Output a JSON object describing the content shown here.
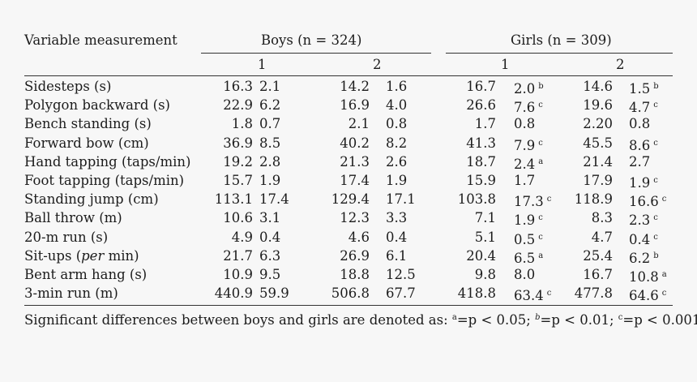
{
  "header": {
    "variable": "Variable measurement",
    "boys": "Boys (n = 324)",
    "girls": "Girls (n = 309)",
    "sub1": "1",
    "sub2": "2"
  },
  "rows": [
    {
      "label": "Sidesteps (s)",
      "b1m": "16.3",
      "b1s": "2.1",
      "b2m": "14.2",
      "b2s": "1.6",
      "g1m": "16.7",
      "g1s": "2.0",
      "g1k": "b",
      "g2m": "14.6",
      "g2s": "1.5",
      "g2k": "b"
    },
    {
      "label": "Polygon backward (s)",
      "b1m": "22.9",
      "b1s": "6.2",
      "b2m": "16.9",
      "b2s": "4.0",
      "g1m": "26.6",
      "g1s": "7.6",
      "g1k": "c",
      "g2m": "19.6",
      "g2s": "4.7",
      "g2k": "c"
    },
    {
      "label": "Bench standing (s)",
      "b1m": "1.8",
      "b1s": "0.7",
      "b2m": "2.1",
      "b2s": "0.8",
      "g1m": "1.7",
      "g1s": "0.8",
      "g1k": "",
      "g2m": "2.20",
      "g2s": "0.8",
      "g2k": ""
    },
    {
      "label": "Forward bow (cm)",
      "b1m": "36.9",
      "b1s": "8.5",
      "b2m": "40.2",
      "b2s": "8.2",
      "g1m": "41.3",
      "g1s": "7.9",
      "g1k": "c",
      "g2m": "45.5",
      "g2s": "8.6",
      "g2k": "c"
    },
    {
      "label": "Hand tapping (taps/min)",
      "b1m": "19.2",
      "b1s": "2.8",
      "b2m": "21.3",
      "b2s": "2.6",
      "g1m": "18.7",
      "g1s": "2.4",
      "g1k": "a",
      "g2m": "21.4",
      "g2s": "2.7",
      "g2k": ""
    },
    {
      "label": "Foot tapping (taps/min)",
      "b1m": "15.7",
      "b1s": "1.9",
      "b2m": "17.4",
      "b2s": "1.9",
      "g1m": "15.9",
      "g1s": "1.7",
      "g1k": "",
      "g2m": "17.9",
      "g2s": "1.9",
      "g2k": "c"
    },
    {
      "label": "Standing jump (cm)",
      "b1m": "113.1",
      "b1s": "17.4",
      "b2m": "129.4",
      "b2s": "17.1",
      "g1m": "103.8",
      "g1s": "17.3",
      "g1k": "c",
      "g2m": "118.9",
      "g2s": "16.6",
      "g2k": "c"
    },
    {
      "label": "Ball throw (m)",
      "b1m": "10.6",
      "b1s": "3.1",
      "b2m": "12.3",
      "b2s": "3.3",
      "g1m": "7.1",
      "g1s": "1.9",
      "g1k": "c",
      "g2m": "8.3",
      "g2s": "2.3",
      "g2k": "c"
    },
    {
      "label": "20-m run (s)",
      "b1m": "4.9",
      "b1s": "0.4",
      "b2m": "4.6",
      "b2s": "0.4",
      "g1m": "5.1",
      "g1s": "0.5",
      "g1k": "c",
      "g2m": "4.7",
      "g2s": "0.4",
      "g2k": "c"
    },
    {
      "label_pre": "Sit-ups (",
      "label_em": "per",
      "label_post": " min)",
      "b1m": "21.7",
      "b1s": "6.3",
      "b2m": "26.9",
      "b2s": "6.1",
      "g1m": "20.4",
      "g1s": "6.5",
      "g1k": "a",
      "g2m": "25.4",
      "g2s": "6.2",
      "g2k": "b"
    },
    {
      "label": "Bent arm hang (s)",
      "b1m": "10.9",
      "b1s": "9.5",
      "b2m": "18.8",
      "b2s": "12.5",
      "g1m": "9.8",
      "g1s": "8.0",
      "g1k": "",
      "g2m": "16.7",
      "g2s": "10.8",
      "g2k": "a"
    },
    {
      "label": "3-min run (m)",
      "b1m": "440.9",
      "b1s": "59.9",
      "b2m": "506.8",
      "b2s": "67.7",
      "g1m": "418.8",
      "g1s": "63.4",
      "g1k": "c",
      "g2m": "477.8",
      "g2s": "64.6",
      "g2k": "c"
    }
  ],
  "note": {
    "prefix": "Significant differences between boys and girls are denoted as: ",
    "a_mark": "a",
    "a_text": "=p < 0.05; ",
    "b_mark": "b",
    "b_text": "=p < 0.01; ",
    "c_mark": "c",
    "c_text": "=p < 0.001."
  }
}
